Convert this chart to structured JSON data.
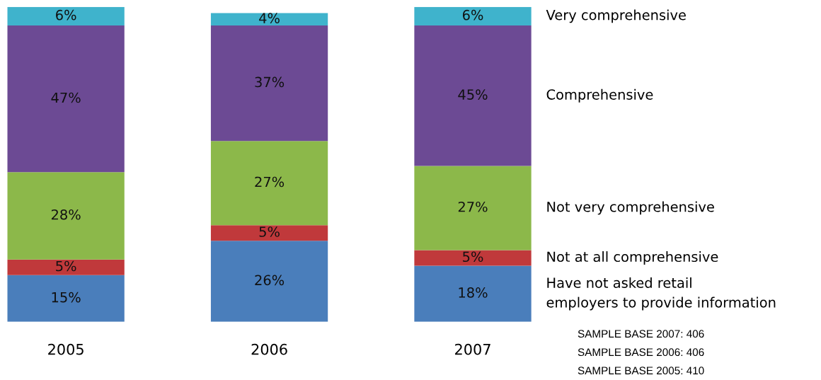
{
  "chart_data": {
    "type": "bar",
    "stacked": true,
    "categories": [
      "2005",
      "2006",
      "2007"
    ],
    "series": [
      {
        "name": "Have not asked retail\nemployers to provide information",
        "color": "#4a7ebb",
        "values": [
          15,
          26,
          18
        ],
        "value_labels": [
          "15%",
          "26%",
          "18%"
        ]
      },
      {
        "name": "Not at all comprehensive",
        "color": "#c0393b",
        "values": [
          5,
          5,
          5
        ],
        "value_labels": [
          "5%",
          "5%",
          "5%"
        ]
      },
      {
        "name": "Not very comprehensive",
        "color": "#8cb84a",
        "values": [
          28,
          27,
          27
        ],
        "value_labels": [
          "28%",
          "27%",
          "27%"
        ]
      },
      {
        "name": "Comprehensive",
        "color": "#6c4a94",
        "values": [
          47,
          37,
          45
        ],
        "value_labels": [
          "47%",
          "37%",
          "45%"
        ]
      },
      {
        "name": "Very comprehensive",
        "color": "#3fb3cc",
        "values": [
          6,
          4,
          6
        ],
        "value_labels": [
          "6%",
          "4%",
          "6%"
        ]
      }
    ],
    "annotations": [
      "SAMPLE BASE 2007: 406",
      "SAMPLE BASE 2006: 406",
      "SAMPLE BASE 2005: 410"
    ]
  }
}
